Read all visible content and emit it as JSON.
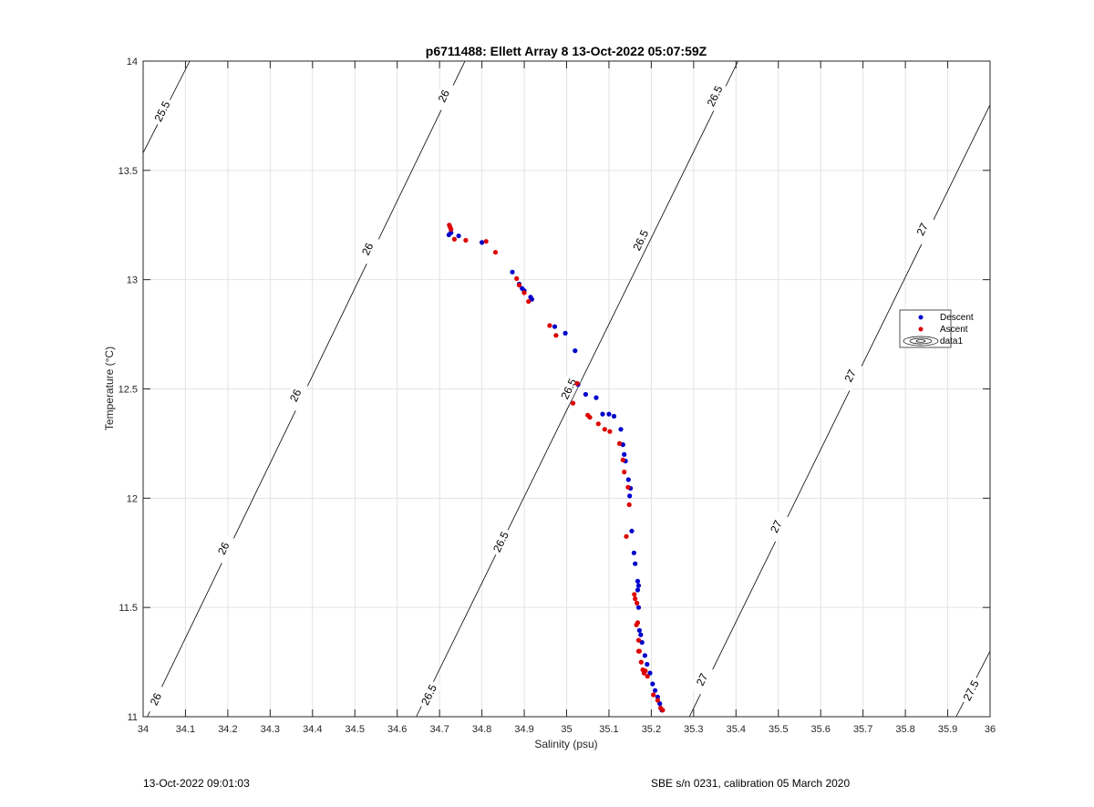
{
  "chart_data": {
    "type": "scatter",
    "title": "p6711488: Ellett Array 8 13-Oct-2022 05:07:59Z",
    "xlabel": "Salinity (psu)",
    "ylabel": "Temperature (°C)",
    "xlim": [
      34,
      36
    ],
    "ylim": [
      11,
      14
    ],
    "x_ticks": [
      "34",
      "34.1",
      "34.2",
      "34.3",
      "34.4",
      "34.5",
      "34.6",
      "34.7",
      "34.8",
      "34.9",
      "35",
      "35.1",
      "35.2",
      "35.3",
      "35.4",
      "35.5",
      "35.6",
      "35.7",
      "35.8",
      "35.9",
      "36"
    ],
    "y_ticks": [
      "11",
      "11.5",
      "12",
      "12.5",
      "13",
      "13.5",
      "14"
    ],
    "grid": true,
    "legend": {
      "placement": "right",
      "entries": [
        "Descent",
        "Ascent",
        "data1"
      ]
    },
    "colors": {
      "descent": "#0000cc",
      "ascent": "#dd0000",
      "contour": "#000000"
    },
    "contours": [
      {
        "level": "25.5",
        "segments": [
          [
            [
              34.0,
              13.58
            ],
            [
              34.11,
              14.0
            ]
          ]
        ],
        "labels": [
          {
            "text": "25.5",
            "x": 34.045,
            "y": 13.77
          }
        ]
      },
      {
        "level": "26",
        "segments": [
          [
            [
              34.01,
              11.0
            ],
            [
              34.76,
              14.0
            ]
          ]
        ],
        "labels": [
          {
            "text": "26",
            "x": 34.03,
            "y": 11.08
          },
          {
            "text": "26",
            "x": 34.19,
            "y": 11.77
          },
          {
            "text": "26",
            "x": 34.36,
            "y": 12.47
          },
          {
            "text": "26",
            "x": 34.53,
            "y": 13.14
          },
          {
            "text": "26",
            "x": 34.71,
            "y": 13.84
          }
        ]
      },
      {
        "level": "26.5",
        "segments": [
          [
            [
              34.645,
              11.0
            ],
            [
              35.405,
              14.0
            ]
          ]
        ],
        "labels": [
          {
            "text": "26.5",
            "x": 34.675,
            "y": 11.1
          },
          {
            "text": "26.5",
            "x": 34.845,
            "y": 11.8
          },
          {
            "text": "26.5",
            "x": 35.005,
            "y": 12.5
          },
          {
            "text": "26.5",
            "x": 35.175,
            "y": 13.18
          },
          {
            "text": "26.5",
            "x": 35.35,
            "y": 13.84
          }
        ]
      },
      {
        "level": "27",
        "segments": [
          [
            [
              35.29,
              11.0
            ],
            [
              36.0,
              13.8
            ]
          ]
        ],
        "labels": [
          {
            "text": "27",
            "x": 35.32,
            "y": 11.17
          },
          {
            "text": "27",
            "x": 35.495,
            "y": 11.87
          },
          {
            "text": "27",
            "x": 35.67,
            "y": 12.56
          },
          {
            "text": "27",
            "x": 35.84,
            "y": 13.23
          }
        ]
      },
      {
        "level": "27.5",
        "segments": [
          [
            [
              35.92,
              11.0
            ],
            [
              36.0,
              11.3
            ]
          ]
        ],
        "labels": [
          {
            "text": "27.5",
            "x": 35.955,
            "y": 11.12
          }
        ]
      }
    ],
    "series": [
      {
        "name": "Descent",
        "x": [
          34.722,
          34.727,
          34.745,
          34.8,
          34.872,
          34.888,
          34.895,
          34.9,
          34.915,
          34.918,
          34.972,
          34.997,
          35.02,
          35.027,
          35.045,
          35.07,
          35.085,
          35.1,
          35.112,
          35.128,
          35.133,
          35.136,
          35.139,
          35.146,
          35.151,
          35.149,
          35.154,
          35.159,
          35.162,
          35.168,
          35.17,
          35.168,
          35.17,
          35.172,
          35.175,
          35.178,
          35.185,
          35.19,
          35.197,
          35.203,
          35.209,
          35.215,
          35.22,
          35.225
        ],
        "y": [
          13.205,
          13.215,
          13.2,
          13.17,
          13.035,
          12.98,
          12.96,
          12.95,
          12.92,
          12.91,
          12.785,
          12.755,
          12.675,
          12.52,
          12.475,
          12.46,
          12.385,
          12.385,
          12.375,
          12.315,
          12.245,
          12.2,
          12.17,
          12.085,
          12.045,
          12.01,
          11.85,
          11.75,
          11.7,
          11.62,
          11.6,
          11.58,
          11.5,
          11.395,
          11.375,
          11.34,
          11.28,
          11.24,
          11.2,
          11.15,
          11.12,
          11.09,
          11.06,
          11.03
        ]
      },
      {
        "name": "Ascent",
        "x": [
          34.723,
          34.725,
          34.727,
          34.735,
          34.762,
          34.81,
          34.832,
          34.882,
          34.888,
          34.9,
          34.91,
          34.96,
          34.975,
          35.015,
          35.025,
          35.05,
          35.055,
          35.075,
          35.09,
          35.102,
          35.125,
          35.133,
          35.136,
          35.145,
          35.148,
          35.141,
          35.16,
          35.162,
          35.166,
          35.168,
          35.165,
          35.17,
          35.172,
          35.17,
          35.176,
          35.18,
          35.183,
          35.186,
          35.191,
          35.205,
          35.215,
          35.222,
          35.227
        ],
        "y": [
          13.25,
          13.24,
          13.23,
          13.185,
          13.18,
          13.175,
          13.125,
          13.005,
          12.975,
          12.94,
          12.9,
          12.79,
          12.745,
          12.435,
          12.525,
          12.38,
          12.37,
          12.34,
          12.315,
          12.305,
          12.25,
          12.175,
          12.12,
          12.05,
          11.97,
          11.825,
          11.56,
          11.54,
          11.52,
          11.43,
          11.42,
          11.35,
          11.3,
          11.3,
          11.25,
          11.215,
          11.2,
          11.21,
          11.185,
          11.1,
          11.075,
          11.04,
          11.03
        ]
      }
    ]
  },
  "footer": {
    "left": "13-Oct-2022 09:01:03",
    "right": "SBE s/n 0231, calibration 05 March 2020"
  }
}
